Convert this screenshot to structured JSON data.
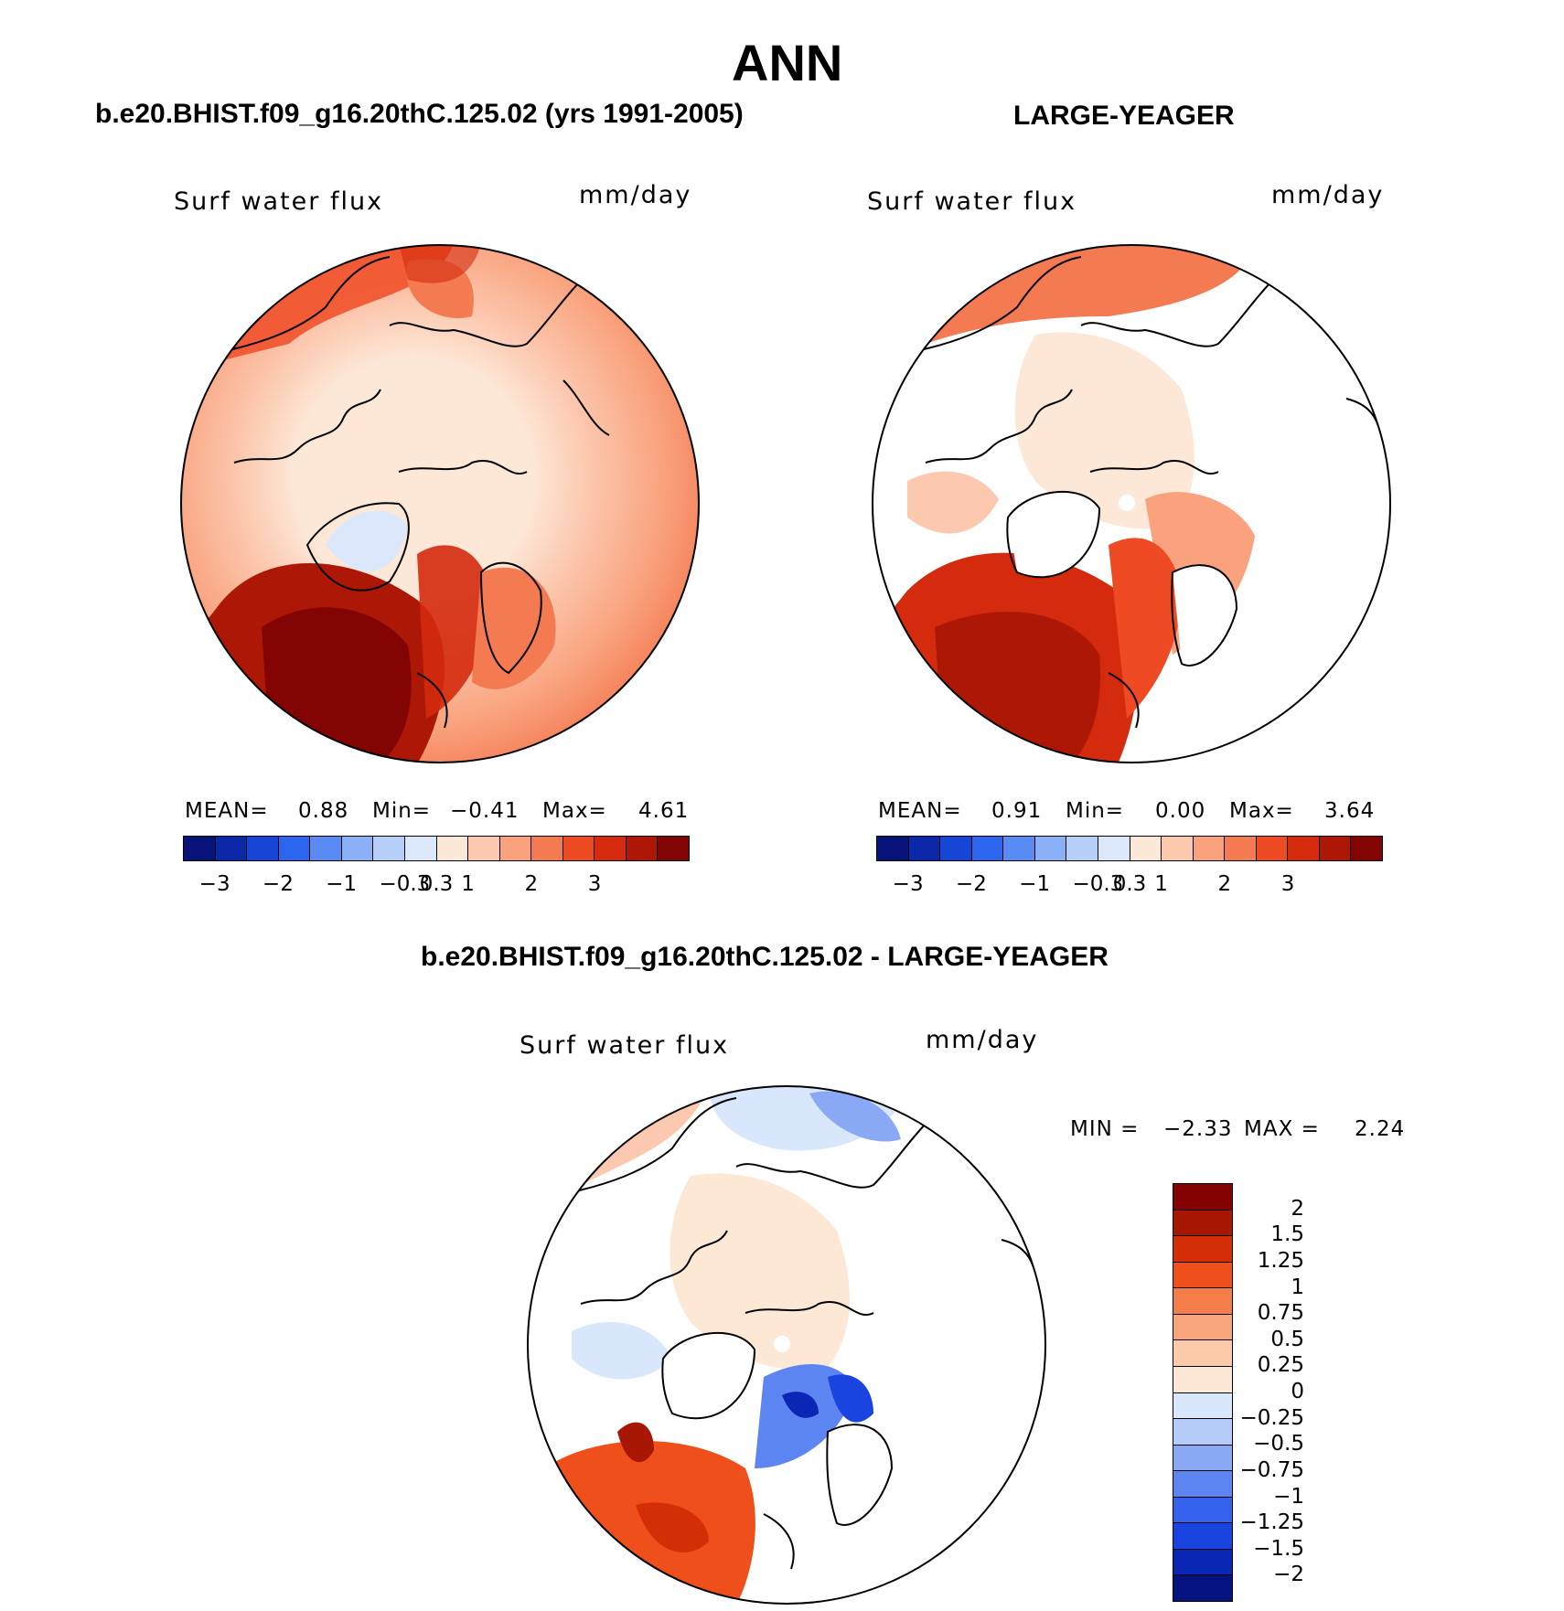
{
  "main_title": "ANN",
  "panels": [
    {
      "id": "model",
      "heading": "b.e20.BHIST.f09_g16.20thC.125.02 (yrs 1991-2005)",
      "variable": "Surf water flux",
      "units": "mm/day",
      "stats": {
        "mean_label": "MEAN=",
        "mean": "0.88",
        "min_label": "Min=",
        "min": "−0.41",
        "max_label": "Max=",
        "max": "4.61"
      }
    },
    {
      "id": "obs",
      "heading": "LARGE-YEAGER",
      "variable": "Surf water flux",
      "units": "mm/day",
      "stats": {
        "mean_label": "MEAN=",
        "mean": "0.91",
        "min_label": "Min=",
        "min": "0.00",
        "max_label": "Max=",
        "max": "3.64"
      }
    },
    {
      "id": "diff",
      "heading": "b.e20.BHIST.f09_g16.20thC.125.02 - LARGE-YEAGER",
      "variable": "Surf water flux",
      "units": "mm/day",
      "stats": {
        "min_label": "MIN =",
        "min": "−2.33",
        "max_label": "MAX =",
        "max": "2.24"
      }
    }
  ],
  "colorbar_main": {
    "colors": [
      "#08137a",
      "#0a28a8",
      "#1646d6",
      "#2c65ee",
      "#5a8af4",
      "#8cb0f7",
      "#b7cff8",
      "#dbe8fb",
      "#fde8d8",
      "#fcc9b0",
      "#f9a27d",
      "#f47a52",
      "#ee4b24",
      "#d42a0d",
      "#ad1806",
      "#820504"
    ],
    "ticks": [
      "−3",
      "−2",
      "−1",
      "−0.3",
      "0.3",
      "1",
      "2",
      "3"
    ]
  },
  "colorbar_diff": {
    "colors": [
      "#840300",
      "#a81604",
      "#d32e06",
      "#ef4f1b",
      "#f47d4a",
      "#f8a57b",
      "#fbcaaa",
      "#fde8d6",
      "#d8e7fb",
      "#b4ccf7",
      "#89a9f5",
      "#5c85f1",
      "#3562ec",
      "#1a44e0",
      "#0a26b5",
      "#04137f"
    ],
    "ticks": [
      "2",
      "1.5",
      "1.25",
      "1",
      "0.75",
      "0.5",
      "0.25",
      "0",
      "−0.25",
      "−0.5",
      "−0.75",
      "−1",
      "−1.25",
      "−1.5",
      "−2"
    ]
  },
  "chart_data": [
    {
      "type": "heatmap",
      "title": "b.e20.BHIST.f09_g16.20thC.125.02 (yrs 1991-2005)",
      "variable": "Surf water flux",
      "units": "mm/day",
      "projection": "north polar stereographic",
      "mean": 0.88,
      "min": -0.41,
      "max": 4.61,
      "contour_levels": [
        -3,
        -2.5,
        -2,
        -1.5,
        -1,
        -0.6,
        -0.3,
        0,
        0.3,
        0.6,
        1,
        1.5,
        2,
        2.5,
        3
      ]
    },
    {
      "type": "heatmap",
      "title": "LARGE-YEAGER",
      "variable": "Surf water flux",
      "units": "mm/day",
      "projection": "north polar stereographic",
      "mean": 0.91,
      "min": 0.0,
      "max": 3.64,
      "contour_levels": [
        -3,
        -2.5,
        -2,
        -1.5,
        -1,
        -0.6,
        -0.3,
        0,
        0.3,
        0.6,
        1,
        1.5,
        2,
        2.5,
        3
      ]
    },
    {
      "type": "heatmap",
      "title": "b.e20.BHIST.f09_g16.20thC.125.02 - LARGE-YEAGER",
      "variable": "Surf water flux",
      "units": "mm/day",
      "projection": "north polar stereographic",
      "min": -2.33,
      "max": 2.24,
      "contour_levels": [
        -2,
        -1.5,
        -1.25,
        -1,
        -0.75,
        -0.5,
        -0.25,
        0,
        0.25,
        0.5,
        0.75,
        1,
        1.25,
        1.5,
        2
      ]
    }
  ]
}
